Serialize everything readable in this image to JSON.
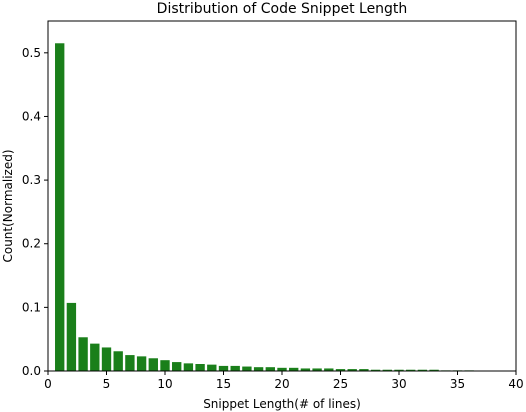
{
  "chart_data": {
    "type": "bar",
    "title": "Distribution of Code Snippet Length",
    "xlabel": "Snippet Length(# of lines)",
    "ylabel": "Count(Normalized)",
    "xlim": [
      0,
      40
    ],
    "ylim": [
      0,
      0.55
    ],
    "xticks": [
      0,
      5,
      10,
      15,
      20,
      25,
      30,
      35,
      40
    ],
    "yticks": [
      0.0,
      0.1,
      0.2,
      0.3,
      0.4,
      0.5
    ],
    "bar_color": "#1a7f1a",
    "bar_width": 0.8,
    "grid": false,
    "x": [
      1,
      2,
      3,
      4,
      5,
      6,
      7,
      8,
      9,
      10,
      11,
      12,
      13,
      14,
      15,
      16,
      17,
      18,
      19,
      20,
      21,
      22,
      23,
      24,
      25,
      26,
      27,
      28,
      29,
      30,
      31,
      32,
      33,
      34,
      35,
      36
    ],
    "values": [
      0.515,
      0.107,
      0.053,
      0.043,
      0.037,
      0.031,
      0.025,
      0.023,
      0.02,
      0.017,
      0.014,
      0.012,
      0.011,
      0.01,
      0.008,
      0.008,
      0.007,
      0.006,
      0.006,
      0.005,
      0.005,
      0.004,
      0.004,
      0.004,
      0.003,
      0.003,
      0.003,
      0.002,
      0.002,
      0.002,
      0.002,
      0.002,
      0.002,
      0.001,
      0.001,
      0.001
    ]
  }
}
